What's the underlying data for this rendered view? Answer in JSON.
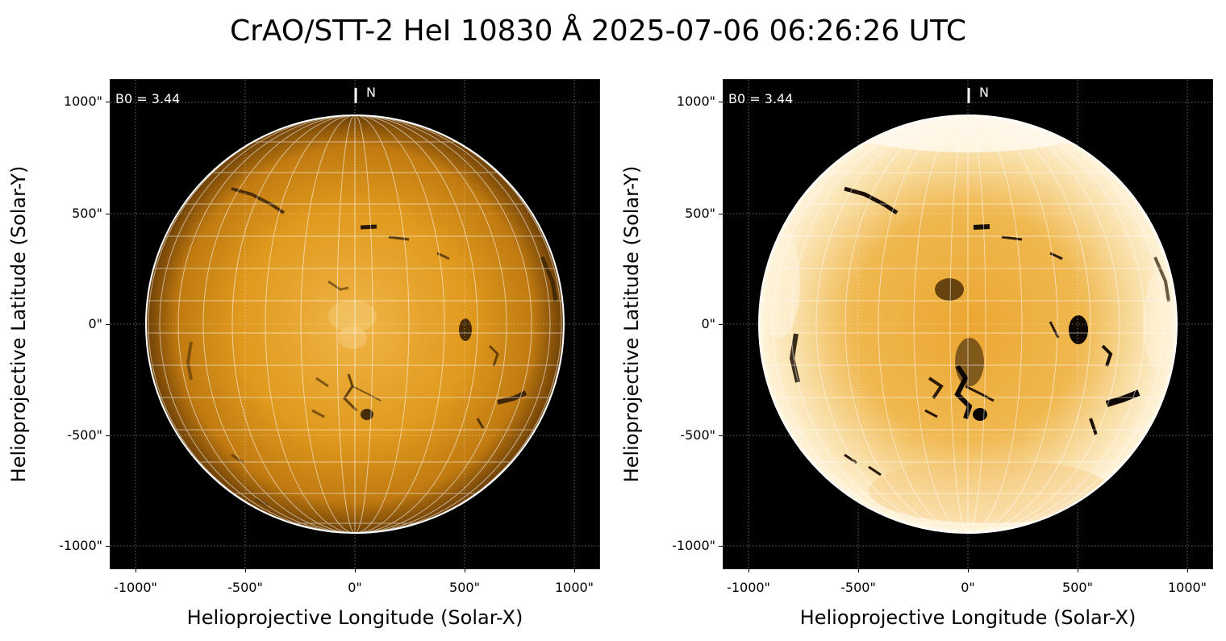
{
  "figure": {
    "title": "CrAO/STT-2 HeI 10830 Å 2025-07-06 06:26:26 UTC"
  },
  "panels": [
    {
      "id": "left",
      "description_tag": "standard-contrast",
      "b0_label": "B0 = 3.44",
      "north_label": "N",
      "xlabel": "Helioprojective Longitude (Solar-X)",
      "ylabel": "Helioprojective Latitude (Solar-Y)",
      "xticks": [
        "-1000\"",
        "-500\"",
        "0\"",
        "500\"",
        "1000\""
      ],
      "yticks": [
        "1000\"",
        "500\"",
        "0\"",
        "-500\"",
        "-1000\""
      ]
    },
    {
      "id": "right",
      "description_tag": "enhanced-contrast",
      "b0_label": "B0 = 3.44",
      "north_label": "N",
      "xlabel": "Helioprojective Longitude (Solar-X)",
      "ylabel": "Helioprojective Latitude (Solar-Y)",
      "xticks": [
        "-1000\"",
        "-500\"",
        "0\"",
        "500\"",
        "1000\""
      ],
      "yticks": [
        "1000\"",
        "500\"",
        "0\"",
        "-500\"",
        "-1000\""
      ]
    }
  ],
  "colors": {
    "sun_center": "#f2b84a",
    "sun_mid": "#d48a0c",
    "sun_limb": "#7a4a08",
    "enhanced_bright": "#fff2d6",
    "background": "#000000",
    "grid": "#ffffff",
    "features": "#2a1800"
  },
  "icons": {
    "north_marker": "north-tick-icon"
  }
}
